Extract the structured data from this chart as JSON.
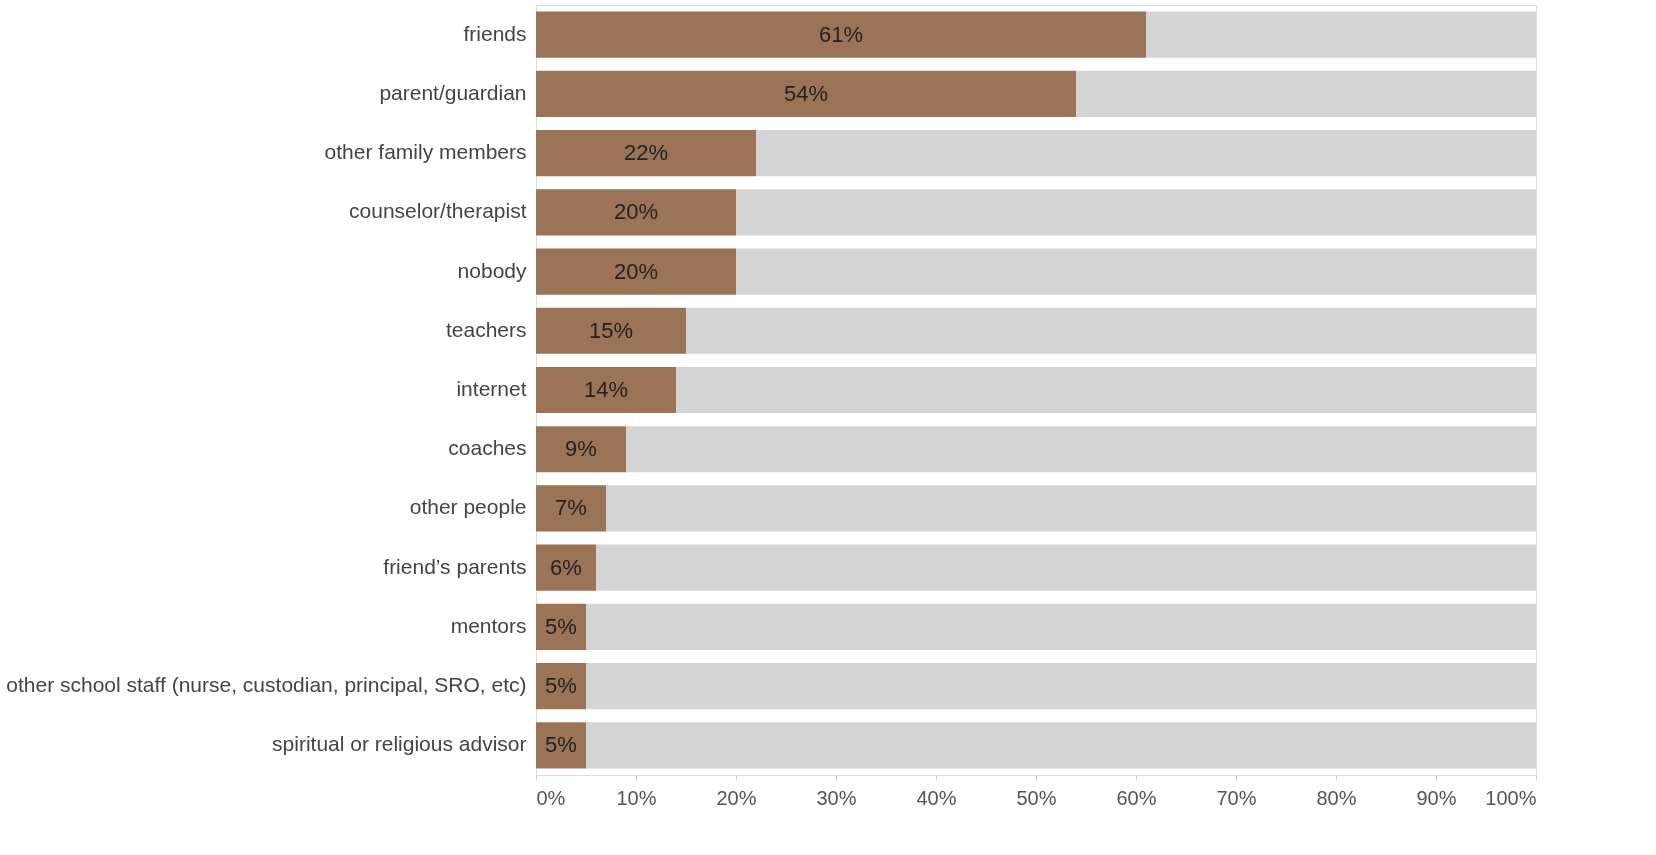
{
  "chart_data": {
    "type": "bar",
    "orientation": "horizontal",
    "stacked": true,
    "categories": [
      "friends",
      "parent/guardian",
      "other family members",
      "counselor/therapist",
      "nobody",
      "teachers",
      "internet",
      "coaches",
      "other people",
      "friend’s parents",
      "mentors",
      "other school staff (nurse, custodian, principal, SRO, etc)",
      "spiritual or religious advisor"
    ],
    "series": [
      {
        "color": "#9b7356",
        "values": [
          61,
          54,
          22,
          20,
          20,
          15,
          14,
          9,
          7,
          6,
          5,
          5,
          5
        ],
        "value_labels": [
          "61%",
          "54%",
          "22%",
          "20%",
          "20%",
          "15%",
          "14%",
          "9%",
          "7%",
          "6%",
          "5%",
          "5%",
          "5%"
        ]
      },
      {
        "color": "#d4d4d4",
        "values": [
          39,
          46,
          78,
          80,
          80,
          85,
          86,
          91,
          93,
          94,
          95,
          95,
          95
        ]
      }
    ],
    "xlim": [
      0,
      100
    ],
    "xticks": [
      {
        "value": 0,
        "label": "0%"
      },
      {
        "value": 10,
        "label": "10%"
      },
      {
        "value": 20,
        "label": "20%"
      },
      {
        "value": 30,
        "label": "30%"
      },
      {
        "value": 40,
        "label": "40%"
      },
      {
        "value": 50,
        "label": "50%"
      },
      {
        "value": 60,
        "label": "60%"
      },
      {
        "value": 70,
        "label": "70%"
      },
      {
        "value": 80,
        "label": "80%"
      },
      {
        "value": 90,
        "label": "90%"
      },
      {
        "value": 100,
        "label": "100%"
      }
    ],
    "grid": false,
    "legend": false
  }
}
